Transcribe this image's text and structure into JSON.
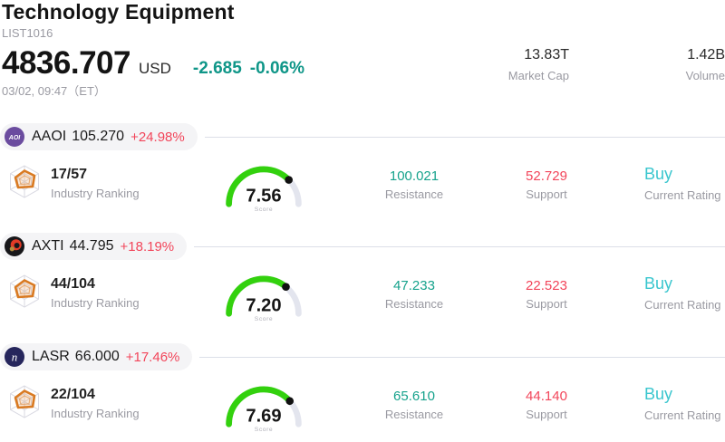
{
  "header": {
    "title": "Technology Equipment",
    "list_id": "LIST1016",
    "price": "4836.707",
    "currency": "USD",
    "change_value": "-2.685",
    "change_percent": "-0.06%",
    "timestamp": "03/02, 09:47（ET）",
    "stats": [
      {
        "value": "13.83T",
        "label": "Market Cap"
      },
      {
        "value": "1.42B",
        "label": "Volume"
      }
    ]
  },
  "labels": {
    "industry_ranking": "Industry Ranking",
    "score": "Score",
    "resistance": "Resistance",
    "support": "Support",
    "current_rating": "Current Rating"
  },
  "colors": {
    "up-red": "#f2455a",
    "down-teal": "#0f9688",
    "resistance-teal": "#16a28c",
    "rating-cyan": "#3ac6ce",
    "gauge-green": "#33d10e",
    "gauge-track": "#e3e5ee",
    "divider": "#dcdfe8",
    "pill-bg": "#f4f4f6"
  },
  "stocks": [
    {
      "ticker": "AAOI",
      "price": "105.270",
      "change": "+24.98%",
      "ranking": "17/57",
      "score": "7.56",
      "resistance": "100.021",
      "support": "52.729",
      "rating": "Buy",
      "logo": {
        "text": "AOI",
        "bg": "#6b4c9f"
      }
    },
    {
      "ticker": "AXTI",
      "price": "44.795",
      "change": "+18.19%",
      "ranking": "44/104",
      "score": "7.20",
      "resistance": "47.233",
      "support": "22.523",
      "rating": "Buy",
      "logo": {
        "bg": "#17171a",
        "accent": "#e23a26",
        "dot": "#b18a3f"
      }
    },
    {
      "ticker": "LASR",
      "price": "66.000",
      "change": "+17.46%",
      "ranking": "22/104",
      "score": "7.69",
      "resistance": "65.610",
      "support": "44.140",
      "rating": "Buy",
      "logo": {
        "text": "n",
        "bg": "#26265c"
      }
    }
  ]
}
